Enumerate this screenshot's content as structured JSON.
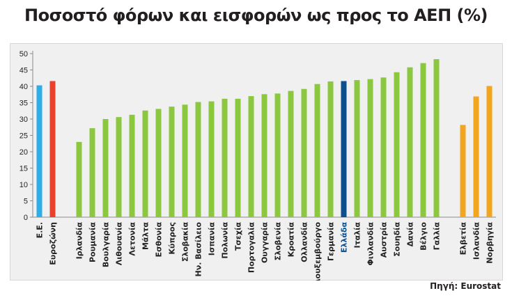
{
  "title": "Ποσοστό φόρων και εισφορών ως προς το ΑΕΠ (%)",
  "source": "Πηγή: Eurostat",
  "chart_data": {
    "type": "bar",
    "title": "Ποσοστό φόρων και εισφορών ως προς το ΑΕΠ (%)",
    "xlabel": "",
    "ylabel": "",
    "ylim": [
      0,
      50
    ],
    "yticks": [
      0,
      5,
      10,
      15,
      20,
      25,
      30,
      35,
      40,
      45,
      50
    ],
    "grid": false,
    "legend": "none",
    "colors": {
      "eu": "#2eaee6",
      "eurozone": "#e8412c",
      "member": "#8bc83f",
      "greece": "#0d4f8c",
      "non_eu": "#f2a51f"
    },
    "categories": [
      "Ε.Ε.",
      "Ευροζώνη",
      "",
      "Ιρλανδία",
      "Ρουμανία",
      "Βουλγαρία",
      "Λιθουανία",
      "Λετονία",
      "Μάλτα",
      "Εσθονία",
      "Κύπρος",
      "Σλοβακία",
      "Ην. Βασίλειο",
      "Ισπανία",
      "Πολωνία",
      "Τσεχία",
      "Πορτογαλία",
      "Ουγγαρία",
      "Σλοβενία",
      "Κροατία",
      "Ολλανδία",
      "Λουξεμβούργο",
      "Γερμανία",
      "Ελλάδα",
      "Ιταλία",
      "Φινλανδία",
      "Αυστρία",
      "Σουηδία",
      "Δανία",
      "Βέλγιο",
      "Γαλλία",
      "",
      "Ελβετία",
      "Ισλανδία",
      "Νορβηγία"
    ],
    "values": [
      40.3,
      41.6,
      null,
      23.0,
      27.2,
      30.0,
      30.6,
      31.3,
      32.6,
      33.1,
      33.8,
      34.4,
      35.2,
      35.4,
      36.2,
      36.2,
      37.0,
      37.6,
      37.8,
      38.6,
      39.2,
      40.7,
      41.5,
      41.6,
      41.9,
      42.2,
      42.7,
      44.3,
      45.8,
      47.1,
      48.3,
      null,
      28.2,
      36.9,
      40.1
    ],
    "groups": [
      "eu",
      "eurozone",
      "",
      "member",
      "member",
      "member",
      "member",
      "member",
      "member",
      "member",
      "member",
      "member",
      "member",
      "member",
      "member",
      "member",
      "member",
      "member",
      "member",
      "member",
      "member",
      "member",
      "member",
      "greece",
      "member",
      "member",
      "member",
      "member",
      "member",
      "member",
      "member",
      "",
      "non_eu",
      "non_eu",
      "non_eu"
    ]
  }
}
